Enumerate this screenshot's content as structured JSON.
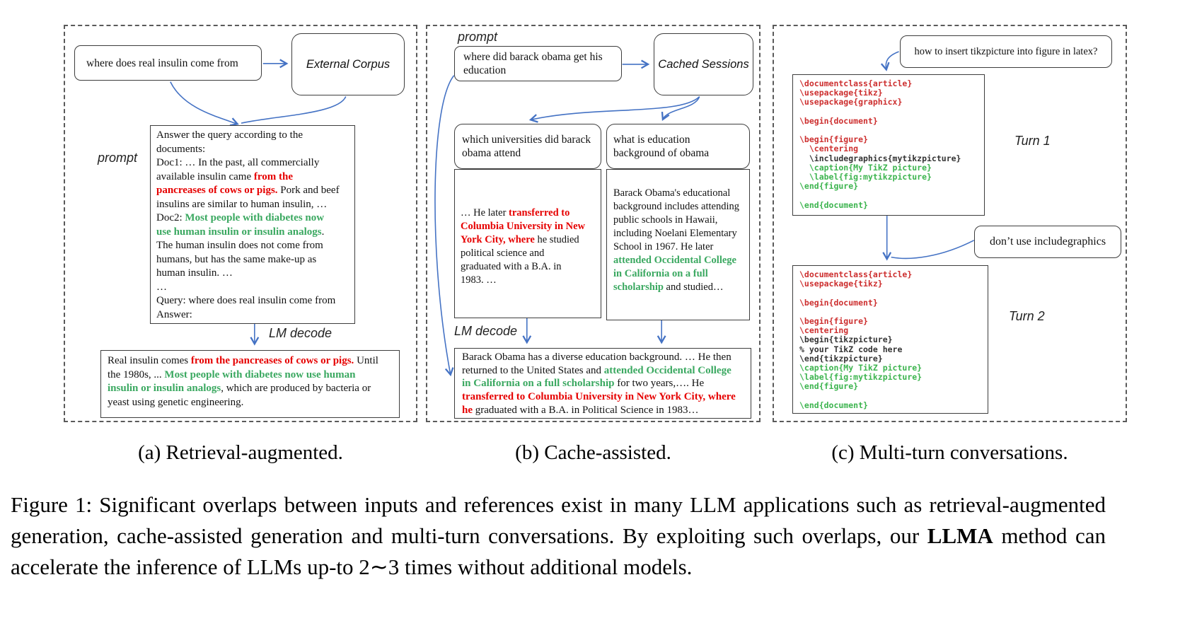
{
  "colors": {
    "highlight_red": "#e60000",
    "highlight_green": "#3aa860",
    "code_red": "#cd2f2f",
    "code_green": "#3cb44e",
    "arrow_blue": "#4472c4",
    "panel_border": "#5a5a5a"
  },
  "panel_a": {
    "query": "where does real insulin come from",
    "corpus": "External Corpus",
    "prompt_label": "prompt",
    "lm_decode_label": "LM decode",
    "prompt_segments": [
      {
        "t": "Answer the query according to the\ndocuments:\nDoc1: … In the past, all commercially\navailable insulin came ",
        "c": "plain"
      },
      {
        "t": "from the\npancreases of cows or pigs.",
        "c": "red"
      },
      {
        "t": " Pork and beef\ninsulins are similar to human insulin, …\nDoc2: ",
        "c": "plain"
      },
      {
        "t": "Most people with diabetes now\nuse human insulin or insulin analogs",
        "c": "green"
      },
      {
        "t": ".\nThe human insulin does not come from\nhumans, but has the same make-up as\nhuman insulin. …\n…\nQuery: where does real insulin come from\nAnswer:",
        "c": "plain"
      }
    ],
    "answer_segments": [
      {
        "t": "Real insulin comes ",
        "c": "plain"
      },
      {
        "t": "from the pancreases of cows or pigs.",
        "c": "red"
      },
      {
        "t": " Until\nthe 1980s, ... ",
        "c": "plain"
      },
      {
        "t": "Most people with diabetes now use human\ninsulin or insulin analogs",
        "c": "green"
      },
      {
        "t": ", which are produced by bacteria or\nyeast using genetic engineering.",
        "c": "plain"
      }
    ]
  },
  "panel_b": {
    "prompt_label": "prompt",
    "query": "where did barack obama get his education",
    "cache": "Cached Sessions",
    "subquery_left": "which universities did barack obama attend",
    "subquery_right": "what is education background of obama",
    "lm_decode_label": "LM decode",
    "doc_left_segments": [
      {
        "t": "… He later ",
        "c": "plain"
      },
      {
        "t": "transferred to\nColumbia University in New\nYork City, where",
        "c": "red"
      },
      {
        "t": " he studied\npolitical science and\ngraduated with a B.A. in\n1983. …",
        "c": "plain"
      }
    ],
    "doc_right_segments": [
      {
        "t": "Barack Obama's educational\nbackground includes attending\npublic schools in Hawaii,\nincluding Noelani Elementary\nSchool in 1967. He later\n",
        "c": "plain"
      },
      {
        "t": "attended Occidental College\nin California on a full\nscholarship",
        "c": "green"
      },
      {
        "t": " and studied…",
        "c": "plain"
      }
    ],
    "answer_segments": [
      {
        "t": "Barack Obama has a diverse education background. … He then\nreturned to the United States and ",
        "c": "plain"
      },
      {
        "t": "attended Occidental College\nin California on a full scholarship",
        "c": "green"
      },
      {
        "t": " for two years,…. He\n",
        "c": "plain"
      },
      {
        "t": "transferred to Columbia University in New York City, where\nhe",
        "c": "red"
      },
      {
        "t": " graduated with a B.A. in Political Science in 1983…",
        "c": "plain"
      }
    ]
  },
  "panel_c": {
    "question1": "how to insert tikzpicture into figure in latex?",
    "question2": "don’t use includegraphics",
    "turn1_label": "Turn 1",
    "turn2_label": "Turn 2",
    "code1": [
      {
        "t": "\\documentclass{article}",
        "c": "red"
      },
      {
        "t": "\\usepackage{tikz}",
        "c": "red"
      },
      {
        "t": "\\usepackage{graphicx}",
        "c": "red"
      },
      {
        "t": "",
        "c": "plain"
      },
      {
        "t": "\\begin{document}",
        "c": "red"
      },
      {
        "t": "",
        "c": "plain"
      },
      {
        "t": "\\begin{figure}",
        "c": "red"
      },
      {
        "t": "  \\centering",
        "c": "red"
      },
      {
        "t": "  \\includegraphics{mytikzpicture}",
        "c": "plain"
      },
      {
        "t": "  \\caption{My TikZ picture}",
        "c": "green"
      },
      {
        "t": "  \\label{fig:mytikzpicture}",
        "c": "green"
      },
      {
        "t": "\\end{figure}",
        "c": "green"
      },
      {
        "t": "",
        "c": "plain"
      },
      {
        "t": "\\end{document}",
        "c": "green"
      }
    ],
    "code2": [
      {
        "t": "\\documentclass{article}",
        "c": "red"
      },
      {
        "t": "\\usepackage{tikz}",
        "c": "red"
      },
      {
        "t": "",
        "c": "plain"
      },
      {
        "t": "\\begin{document}",
        "c": "red"
      },
      {
        "t": "",
        "c": "plain"
      },
      {
        "t": "\\begin{figure}",
        "c": "red"
      },
      {
        "t": "\\centering",
        "c": "red"
      },
      {
        "t": "\\begin{tikzpicture}",
        "c": "plain"
      },
      {
        "t": "% your TikZ code here",
        "c": "plain"
      },
      {
        "t": "\\end{tikzpicture}",
        "c": "plain"
      },
      {
        "t": "\\caption{My TikZ picture}",
        "c": "green"
      },
      {
        "t": "\\label{fig:mytikzpicture}",
        "c": "green"
      },
      {
        "t": "\\end{figure}",
        "c": "green"
      },
      {
        "t": "",
        "c": "plain"
      },
      {
        "t": "\\end{document}",
        "c": "green"
      }
    ]
  },
  "captions": {
    "sub_a": "(a) Retrieval-augmented.",
    "sub_b": "(b) Cache-assisted.",
    "sub_c": "(c) Multi-turn conversations.",
    "figure_segments": [
      {
        "t": "Figure 1: Significant overlaps between inputs and references exist in many LLM applications such as retrieval-augmented generation, cache-assisted generation and multi-turn conversations. By exploiting such overlaps, our ",
        "c": "plain"
      },
      {
        "t": "LLMA",
        "c": "bold"
      },
      {
        "t": " method can accelerate the inference of LLMs up-to 2∼3 times without additional models.",
        "c": "plain"
      }
    ]
  }
}
